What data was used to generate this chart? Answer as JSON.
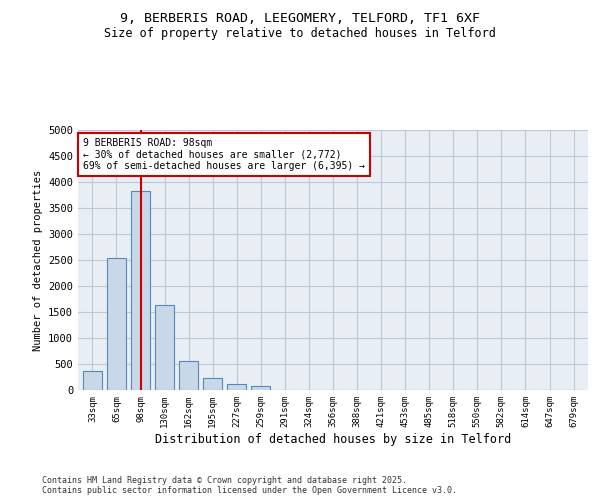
{
  "title_line1": "9, BERBERIS ROAD, LEEGOMERY, TELFORD, TF1 6XF",
  "title_line2": "Size of property relative to detached houses in Telford",
  "xlabel": "Distribution of detached houses by size in Telford",
  "ylabel": "Number of detached properties",
  "categories": [
    "33sqm",
    "65sqm",
    "98sqm",
    "130sqm",
    "162sqm",
    "195sqm",
    "227sqm",
    "259sqm",
    "291sqm",
    "324sqm",
    "356sqm",
    "388sqm",
    "421sqm",
    "453sqm",
    "485sqm",
    "518sqm",
    "550sqm",
    "582sqm",
    "614sqm",
    "647sqm",
    "679sqm"
  ],
  "values": [
    370,
    2530,
    3820,
    1630,
    560,
    230,
    120,
    70,
    0,
    0,
    0,
    0,
    0,
    0,
    0,
    0,
    0,
    0,
    0,
    0,
    0
  ],
  "bar_color": "#c8d8e8",
  "bar_edge_color": "#5588bb",
  "vline_x_index": 2,
  "vline_color": "#cc0000",
  "annotation_title": "9 BERBERIS ROAD: 98sqm",
  "annotation_line1": "← 30% of detached houses are smaller (2,772)",
  "annotation_line2": "69% of semi-detached houses are larger (6,395) →",
  "annotation_box_color": "#cc0000",
  "ylim": [
    0,
    5000
  ],
  "yticks": [
    0,
    500,
    1000,
    1500,
    2000,
    2500,
    3000,
    3500,
    4000,
    4500,
    5000
  ],
  "grid_color": "#c0c8d8",
  "background_color": "#e8eef4",
  "footer_line1": "Contains HM Land Registry data © Crown copyright and database right 2025.",
  "footer_line2": "Contains public sector information licensed under the Open Government Licence v3.0."
}
